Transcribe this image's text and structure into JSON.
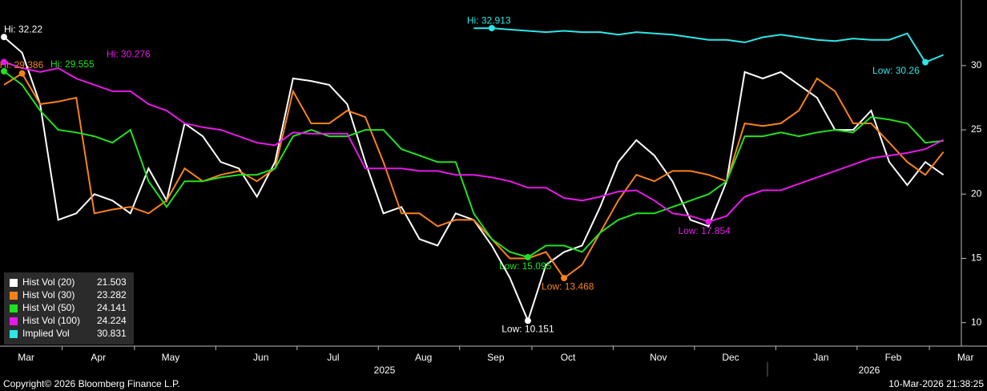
{
  "chart_data": {
    "type": "line",
    "categories": [
      null,
      "Mar",
      null,
      null,
      null,
      "Apr",
      null,
      null,
      null,
      "May",
      null,
      null,
      null,
      null,
      "Jun",
      null,
      null,
      null,
      "Jul",
      null,
      null,
      null,
      null,
      "Aug",
      null,
      null,
      null,
      "Sep",
      null,
      null,
      null,
      "Oct",
      null,
      null,
      null,
      null,
      "Nov",
      null,
      null,
      null,
      "Dec",
      null,
      null,
      null,
      null,
      "Jan",
      null,
      null,
      null,
      "Feb",
      null,
      null,
      null,
      "Mar"
    ],
    "x_groups": [
      "2025",
      "2026"
    ],
    "ylim": [
      8.3,
      35.1
    ],
    "yticks": [
      10,
      15,
      20,
      25,
      30
    ],
    "series": [
      {
        "name": "Hist Vol (20)",
        "color": "#ffffff",
        "last": 21.503,
        "hi": {
          "label": "Hi: 32.22",
          "value": 32.22
        },
        "low": {
          "label": "Low: 10.151",
          "value": 10.151
        },
        "values": [
          32.22,
          31.0,
          27.0,
          18.0,
          18.5,
          20.0,
          19.5,
          18.5,
          22.0,
          19.5,
          25.5,
          24.5,
          22.5,
          22.0,
          19.8,
          22.5,
          29.0,
          28.8,
          28.5,
          27.0,
          22.5,
          18.5,
          19.0,
          16.5,
          16.0,
          18.5,
          18.0,
          16.0,
          13.5,
          10.151,
          14.5,
          15.5,
          16.0,
          19.0,
          22.5,
          24.2,
          23.0,
          21.0,
          18.0,
          17.5,
          21.0,
          29.5,
          29.0,
          29.5,
          28.5,
          27.5,
          25.0,
          25.0,
          26.5,
          22.5,
          20.7,
          22.5,
          21.503,
          null
        ]
      },
      {
        "name": "Hist Vol (30)",
        "color": "#f7821b",
        "last": 23.282,
        "hi": {
          "label": "Hi: 29.386",
          "value": 29.386
        },
        "low": {
          "label": "Low: 13.468",
          "value": 13.468
        },
        "values": [
          28.5,
          29.386,
          27.0,
          27.2,
          27.5,
          18.5,
          18.8,
          19.0,
          18.5,
          19.5,
          22.0,
          21.0,
          21.5,
          21.8,
          21.0,
          22.0,
          28.0,
          25.5,
          25.5,
          26.5,
          26.0,
          22.5,
          18.5,
          18.5,
          17.5,
          18.0,
          18.0,
          16.5,
          15.0,
          15.0,
          15.5,
          13.468,
          14.5,
          17.0,
          19.5,
          21.5,
          21.0,
          21.8,
          21.8,
          21.5,
          21.0,
          25.5,
          25.3,
          25.5,
          26.5,
          29.0,
          28.0,
          25.5,
          25.5,
          24.0,
          22.5,
          21.5,
          23.282,
          null
        ]
      },
      {
        "name": "Hist Vol (50)",
        "color": "#22e022",
        "last": 24.141,
        "hi": {
          "label": "Hi: 29.555",
          "value": 29.555
        },
        "low": {
          "label": "Low: 15.095",
          "value": 15.095
        },
        "values": [
          29.555,
          28.5,
          26.5,
          25.0,
          24.8,
          24.5,
          24.0,
          25.0,
          21.0,
          19.0,
          21.0,
          21.0,
          21.3,
          21.5,
          21.5,
          22.0,
          24.5,
          25.0,
          24.5,
          24.5,
          25.0,
          25.0,
          23.5,
          23.0,
          22.5,
          22.5,
          18.5,
          16.5,
          15.5,
          15.095,
          16.0,
          16.0,
          15.5,
          17.0,
          18.0,
          18.5,
          18.5,
          19.0,
          19.5,
          20.0,
          21.0,
          24.5,
          24.5,
          24.8,
          24.5,
          24.8,
          25.0,
          24.8,
          26.0,
          25.8,
          25.5,
          24.0,
          24.141,
          null
        ]
      },
      {
        "name": "Hist Vol (100)",
        "color": "#e619e6",
        "last": 24.224,
        "hi": {
          "label": "Hi: 30.276",
          "value": 30.276
        },
        "low": {
          "label": "Low: 17.854",
          "value": 17.854
        },
        "values": [
          30.276,
          29.8,
          29.5,
          29.8,
          29.0,
          28.5,
          28.0,
          28.0,
          27.0,
          26.5,
          25.5,
          25.2,
          25.0,
          24.5,
          24.0,
          23.8,
          24.8,
          24.7,
          24.7,
          24.7,
          22.0,
          22.0,
          22.0,
          21.8,
          21.8,
          21.5,
          21.5,
          21.3,
          21.0,
          20.5,
          20.5,
          19.7,
          19.5,
          19.8,
          20.2,
          20.3,
          19.5,
          18.5,
          18.3,
          17.854,
          18.3,
          19.8,
          20.3,
          20.3,
          20.8,
          21.3,
          21.8,
          22.3,
          22.8,
          23.0,
          23.2,
          23.5,
          24.224,
          null
        ]
      },
      {
        "name": "Implied Vol",
        "color": "#2ee6e6",
        "last": 30.831,
        "hi": {
          "label": "Hi: 32.913",
          "value": 32.913
        },
        "low": {
          "label": "Low: 30.26",
          "value": 30.26
        },
        "values": [
          null,
          null,
          null,
          null,
          null,
          null,
          null,
          null,
          null,
          null,
          null,
          null,
          null,
          null,
          null,
          null,
          null,
          null,
          null,
          null,
          null,
          null,
          null,
          null,
          null,
          null,
          32.9,
          32.913,
          32.8,
          32.7,
          32.6,
          32.7,
          32.6,
          32.6,
          32.4,
          32.6,
          32.5,
          32.4,
          32.2,
          32.0,
          32.0,
          31.8,
          32.2,
          32.4,
          32.2,
          32.0,
          31.9,
          32.1,
          32.0,
          32.0,
          32.5,
          30.26,
          30.831,
          null
        ]
      }
    ]
  },
  "footer": {
    "copyright": "Copyright© 2026 Bloomberg Finance L.P.",
    "timestamp": "10-Mar-2026 21:38:25"
  }
}
